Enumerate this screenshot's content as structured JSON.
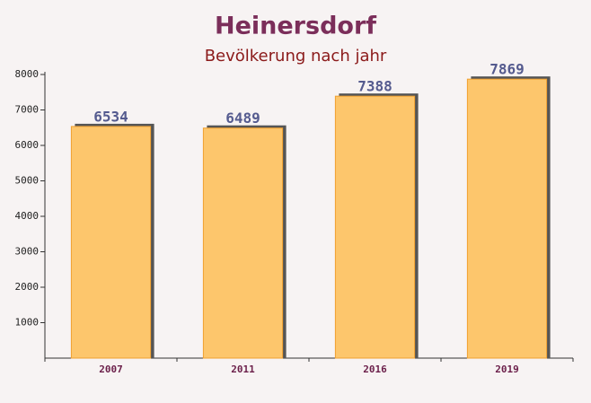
{
  "chart_data": {
    "type": "bar",
    "title": "Heinersdorf",
    "subtitle": "Bevölkerung nach jahr",
    "categories": [
      "2007",
      "2011",
      "2016",
      "2019"
    ],
    "values": [
      6534,
      6489,
      7388,
      7869
    ],
    "color": "#fdc66c",
    "ylim": [
      0,
      8000
    ],
    "yticks": [
      1000,
      2000,
      3000,
      4000,
      5000,
      6000,
      7000,
      8000
    ],
    "grid": false
  }
}
